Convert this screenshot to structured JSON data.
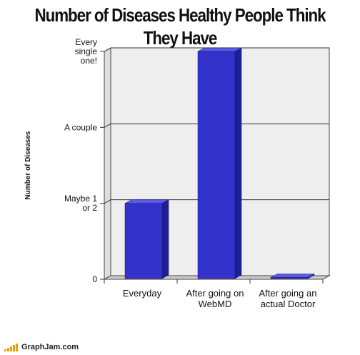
{
  "chart_data": {
    "type": "bar",
    "title_line1": "Number of Diseases Healthy People Think",
    "title_line2": "They Have",
    "ylabel": "Number of Diseases",
    "xlabel": "",
    "y_ticks": [
      {
        "value": 0,
        "lines": [
          "0"
        ]
      },
      {
        "value": 1,
        "lines": [
          "Maybe 1",
          "or 2"
        ]
      },
      {
        "value": 2,
        "lines": [
          "A couple"
        ]
      },
      {
        "value": 3,
        "lines": [
          "Every",
          "single",
          "one!"
        ]
      }
    ],
    "ylim": [
      0,
      3
    ],
    "grid": true,
    "categories": [
      {
        "lines": [
          "Everyday"
        ]
      },
      {
        "lines": [
          "After going on",
          "WebMD"
        ]
      },
      {
        "lines": [
          "After going an",
          "actual Doctor"
        ]
      }
    ],
    "values": [
      1,
      3,
      0
    ],
    "colors": {
      "front": "#3333cc",
      "side": "#1e1e99",
      "top": "#5a5ae6",
      "wall": "#eeeeee",
      "floor": "#cccccc"
    }
  },
  "footer": {
    "brand": "GraphJam.com"
  }
}
